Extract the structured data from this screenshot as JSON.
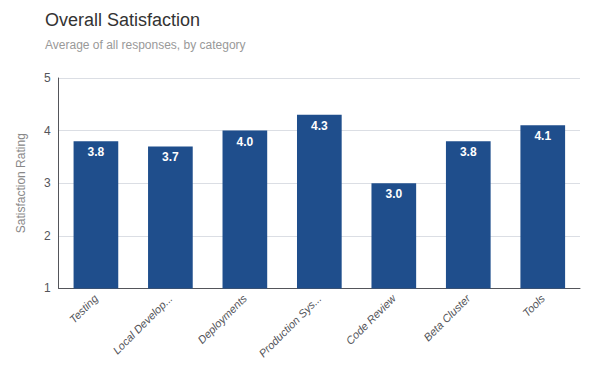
{
  "chart_data": {
    "type": "bar",
    "title": "Overall Satisfaction",
    "subtitle": "Average of all responses, by category",
    "ylabel": "Satisfaction Rating",
    "categories": [
      "Testing",
      "Local Develop...",
      "Deployments",
      "Production Sys...",
      "Code Review",
      "Beta Cluster",
      "Tools"
    ],
    "values": [
      3.8,
      3.7,
      4.0,
      4.3,
      3.0,
      3.8,
      4.1
    ],
    "value_labels": [
      "3.8",
      "3.7",
      "4.0",
      "4.3",
      "3.0",
      "3.8",
      "4.1"
    ],
    "color": "#1F4E8C",
    "ylim": [
      1,
      5
    ],
    "yticks": [
      1,
      2,
      3,
      4,
      5
    ],
    "grid": true,
    "data_labels": true
  }
}
